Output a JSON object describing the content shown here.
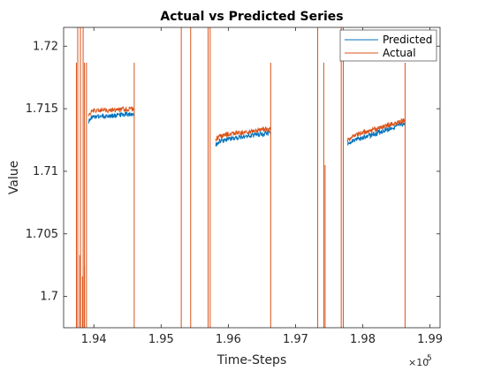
{
  "chart_data": {
    "type": "line",
    "title": "Actual vs Predicted Series",
    "xlabel": "Time-Steps",
    "ylabel": "Value",
    "x_exponent_label": "×10",
    "x_exponent_power": "5",
    "xlim": [
      1.9355,
      1.9915
    ],
    "ylim": [
      1.6975,
      1.7215
    ],
    "x_ticks": [
      1.94,
      1.95,
      1.96,
      1.97,
      1.98,
      1.99
    ],
    "x_tick_labels": [
      "1.94",
      "1.95",
      "1.96",
      "1.97",
      "1.98",
      "1.99"
    ],
    "y_ticks": [
      1.7,
      1.705,
      1.71,
      1.715,
      1.72
    ],
    "y_tick_labels": [
      "1.7",
      "1.705",
      "1.71",
      "1.715",
      "1.72"
    ],
    "legend_position": "top-right",
    "grid": false,
    "series": [
      {
        "name": "Predicted",
        "color": "#0072BD",
        "segments": [
          {
            "x_start": 1.9392,
            "x_end": 1.946,
            "y_start": 1.7143,
            "y_end": 1.7146
          },
          {
            "x_start": 1.9581,
            "x_end": 1.9663,
            "y_start": 1.7124,
            "y_end": 1.7131
          },
          {
            "x_start": 1.9777,
            "x_end": 1.9863,
            "y_start": 1.7123,
            "y_end": 1.7138
          }
        ]
      },
      {
        "name": "Actual",
        "color": "#D95319",
        "segments": [
          {
            "x_start": 1.9392,
            "x_end": 1.946,
            "y_start": 1.7148,
            "y_end": 1.715
          },
          {
            "x_start": 1.9581,
            "x_end": 1.9663,
            "y_start": 1.7128,
            "y_end": 1.7134
          },
          {
            "x_start": 1.9777,
            "x_end": 1.9863,
            "y_start": 1.7127,
            "y_end": 1.7141
          }
        ],
        "spikes_up": [
          1.9376,
          1.938,
          1.9384,
          1.953,
          1.9544,
          1.957,
          1.9573,
          1.9733,
          1.9768,
          1.9771
        ],
        "spikes_down": [
          1.9374,
          1.9386,
          1.9389,
          1.946,
          1.9663,
          1.9742,
          1.9863
        ],
        "partial_dips": [
          {
            "x": 1.9379,
            "y": 1.7033
          },
          {
            "x": 1.9383,
            "y": 1.7016
          },
          {
            "x": 1.9386,
            "y": 1.7025
          },
          {
            "x": 1.9744,
            "y": 1.7105
          }
        ]
      }
    ]
  }
}
